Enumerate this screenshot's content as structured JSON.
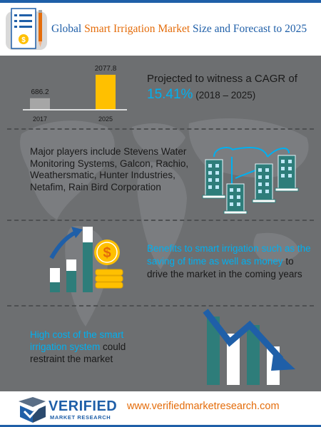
{
  "header": {
    "title_part1": "Global",
    "title_part2": "Smart Irrigation Market",
    "title_part3": "Size and Forecast to 2025"
  },
  "chart_data": {
    "type": "bar",
    "categories": [
      "2017",
      "2025"
    ],
    "values": [
      686.2,
      2077.8
    ],
    "value_labels": [
      "686.2",
      "2077.8"
    ],
    "colors": [
      "#a6a6a6",
      "#ffc000"
    ],
    "ylim": [
      0,
      2200
    ],
    "title": "",
    "xlabel": "",
    "ylabel": ""
  },
  "cagr": {
    "line1": "Projected to witness a CAGR of",
    "value": "15.41%",
    "range": "(2018 – 2025)"
  },
  "players": {
    "text": "Major players include Stevens Water Monitoring Systems, Galcon, Rachio, Weathersmatic, Hunter Industries, Netafim, Rain Bird Corporation"
  },
  "benefits": {
    "highlight": "Benefits to smart irrigation such as the saving of time as well as money",
    "rest": " to drive the market in the coming years"
  },
  "restraint": {
    "highlight": "High  cost of the smart irrigation system",
    "rest": " could restraint the market"
  },
  "footer": {
    "logo_main": "VERIFIED",
    "logo_sub": "MARKET RESEARCH",
    "url": "www.verifiedmarketresearch.com"
  },
  "colors": {
    "brand_blue": "#1f5fa8",
    "accent_orange": "#e46c0a",
    "highlight_cyan": "#00b0f0",
    "teal": "#2e7d7a",
    "background_gray": "#6d6f71"
  },
  "icons": [
    "document-dollar-icon",
    "buildings-network-icon",
    "growth-bars-coins-icon",
    "decline-bars-arrow-icon",
    "verified-logo-icon"
  ]
}
